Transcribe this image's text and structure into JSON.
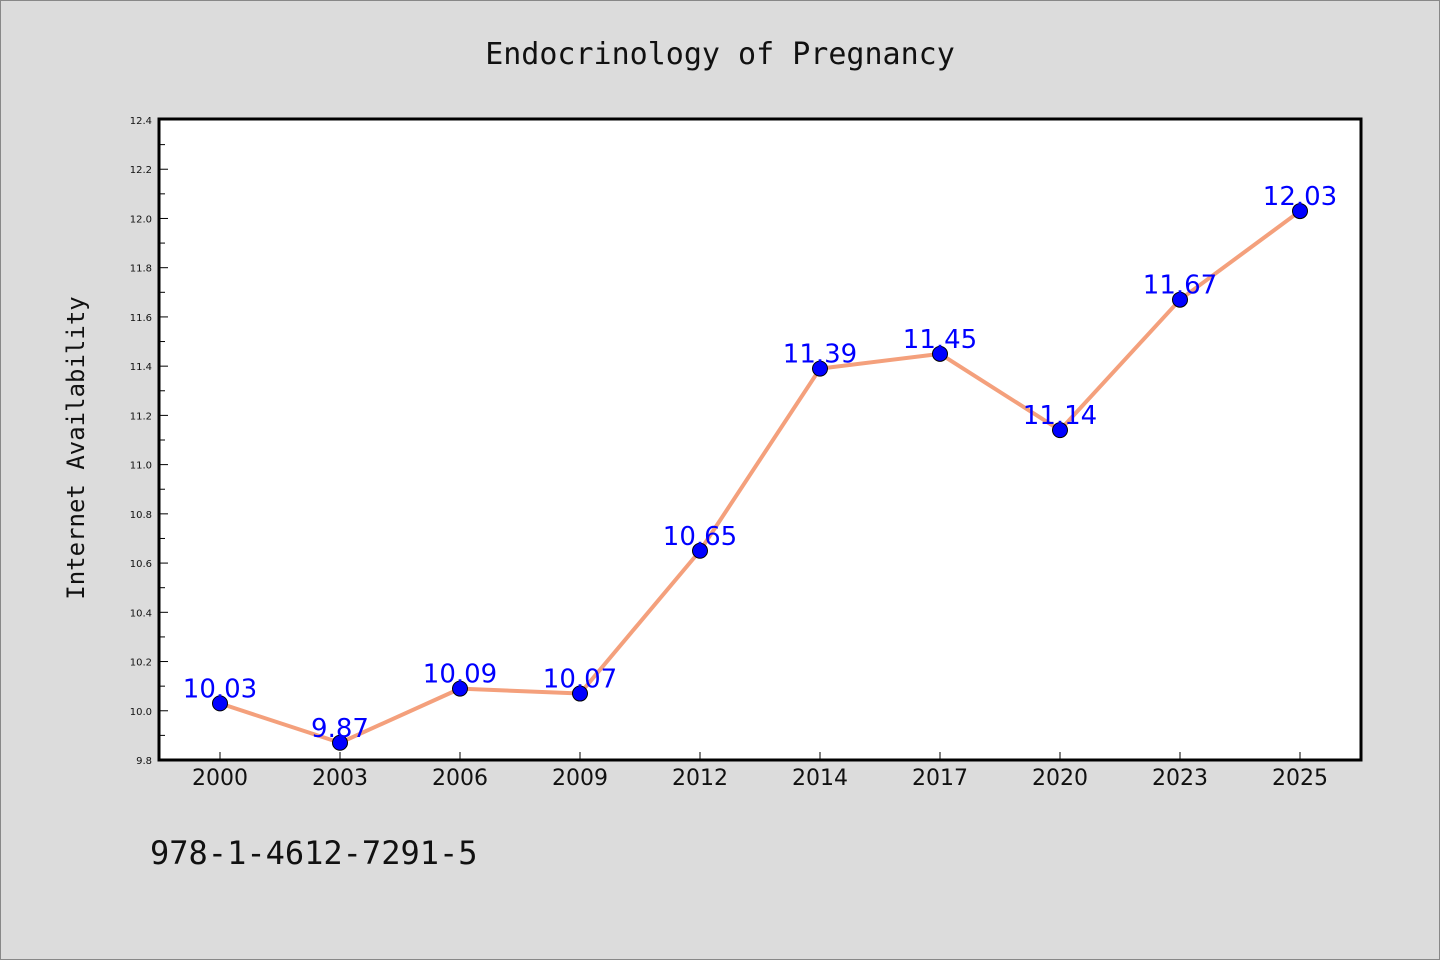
{
  "chart_data": {
    "type": "line",
    "title": "Endocrinology of Pregnancy",
    "xlabel": "",
    "ylabel": "Internet Availability",
    "categories": [
      "2000",
      "2003",
      "2006",
      "2009",
      "2012",
      "2014",
      "2017",
      "2020",
      "2023",
      "2025"
    ],
    "series": [
      {
        "values": [
          10.03,
          9.87,
          10.09,
          10.07,
          10.65,
          11.39,
          11.45,
          11.14,
          11.67,
          12.03
        ],
        "line_color": "#f4a07c",
        "marker_color": "#0000ff"
      }
    ],
    "data_labels": [
      "10.03",
      "9.87",
      "10.09",
      "10.07",
      "10.65",
      "11.39",
      "11.45",
      "11.14",
      "11.67",
      "12.03"
    ],
    "ylim": [
      9.8,
      12.4
    ],
    "yticks": [
      "9.8",
      "10.0",
      "10.2",
      "10.4",
      "10.6",
      "10.8",
      "11.0",
      "11.2",
      "11.4",
      "11.6",
      "11.8",
      "12.0",
      "12.2",
      "12.4"
    ],
    "grid": false,
    "legend": "none"
  },
  "footer": {
    "isbn": "978-1-4612-7291-5"
  }
}
